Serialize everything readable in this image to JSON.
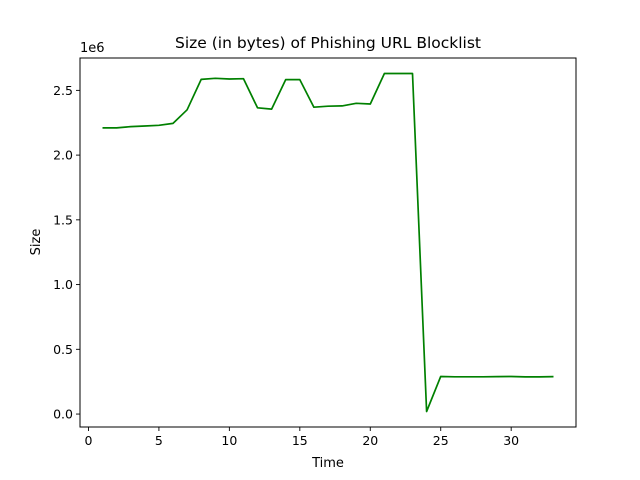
{
  "chart_data": {
    "type": "line",
    "title": "Size (in bytes) of Phishing URL Blocklist",
    "xlabel": "Time",
    "ylabel": "Size",
    "y_offset_label": "1e6",
    "xlim": [
      -0.6,
      34.6
    ],
    "ylim": [
      -0.1,
      2.75
    ],
    "xticks": [
      0,
      5,
      10,
      15,
      20,
      25,
      30
    ],
    "yticks": [
      0.0,
      0.5,
      1.0,
      1.5,
      2.0,
      2.5
    ],
    "ytick_labels": [
      "0.0",
      "0.5",
      "1.0",
      "1.5",
      "2.0",
      "2.5"
    ],
    "grid": false,
    "line_color": "#008000",
    "series": [
      {
        "x": [
          1,
          2,
          3,
          4,
          5,
          6,
          7,
          8,
          9,
          10,
          11,
          12,
          13,
          14,
          15,
          16,
          17,
          18,
          19,
          20,
          21,
          22,
          23,
          24,
          25,
          26,
          27,
          28,
          29,
          30,
          31,
          32,
          33
        ],
        "values": [
          2.21,
          2.21,
          2.22,
          2.225,
          2.23,
          2.245,
          2.35,
          2.585,
          2.593,
          2.588,
          2.59,
          2.365,
          2.355,
          2.583,
          2.583,
          2.37,
          2.378,
          2.38,
          2.4,
          2.395,
          2.63,
          2.63,
          2.63,
          0.02,
          0.29,
          0.288,
          0.288,
          0.288,
          0.289,
          0.29,
          0.287,
          0.287,
          0.289
        ]
      }
    ]
  }
}
